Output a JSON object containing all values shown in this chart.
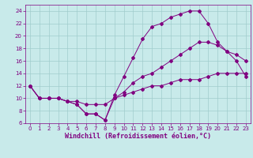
{
  "background_color": "#c8eaea",
  "line_color": "#800080",
  "grid_color": "#a0cccc",
  "xlabel": "Windchill (Refroidissement éolien,°C)",
  "xlim": [
    -0.5,
    23.5
  ],
  "ylim": [
    6,
    25
  ],
  "xticks": [
    0,
    1,
    2,
    3,
    4,
    5,
    6,
    7,
    8,
    9,
    10,
    11,
    12,
    13,
    14,
    15,
    16,
    17,
    18,
    19,
    20,
    21,
    22,
    23
  ],
  "yticks": [
    6,
    8,
    10,
    12,
    14,
    16,
    18,
    20,
    22,
    24
  ],
  "line1_x": [
    0,
    1,
    2,
    3,
    4,
    5,
    6,
    7,
    8,
    9,
    10,
    11,
    12,
    13,
    14,
    15,
    16,
    17,
    18,
    19,
    20,
    21,
    22,
    23
  ],
  "line1_y": [
    12,
    10,
    10,
    10,
    9.5,
    9,
    7.5,
    7.5,
    6.5,
    10.5,
    13.5,
    16.5,
    19.5,
    21.5,
    22,
    23,
    23.5,
    24,
    24,
    22,
    19,
    17.5,
    16,
    13.5
  ],
  "line2_x": [
    0,
    1,
    2,
    3,
    4,
    5,
    6,
    7,
    8,
    9,
    10,
    11,
    12,
    13,
    14,
    15,
    16,
    17,
    18,
    19,
    20,
    21,
    22,
    23
  ],
  "line2_y": [
    12,
    10,
    10,
    10,
    9.5,
    9.5,
    9,
    9,
    9,
    10,
    10.5,
    11,
    11.5,
    12,
    12,
    12.5,
    13,
    13,
    13,
    13.5,
    14,
    14,
    14,
    14
  ],
  "line3_x": [
    0,
    1,
    2,
    3,
    4,
    5,
    6,
    7,
    8,
    9,
    10,
    11,
    12,
    13,
    14,
    15,
    16,
    17,
    18,
    19,
    20,
    21,
    22,
    23
  ],
  "line3_y": [
    12,
    10,
    10,
    10,
    9.5,
    9,
    7.5,
    7.5,
    6.5,
    10,
    11,
    12.5,
    13.5,
    14,
    15,
    16,
    17,
    18,
    19,
    19,
    18.5,
    17.5,
    17,
    16
  ],
  "marker": "D",
  "markersize": 2,
  "linewidth": 0.7,
  "tick_labelsize": 5,
  "xlabel_fontsize": 6
}
